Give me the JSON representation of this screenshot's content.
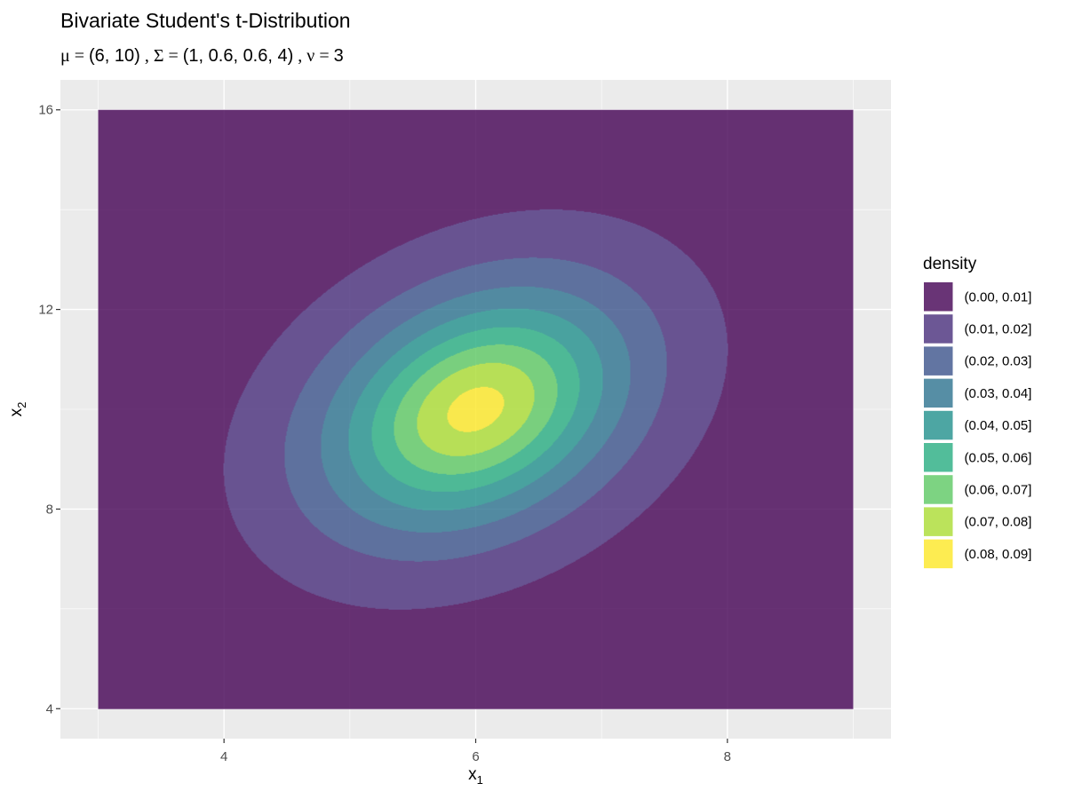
{
  "chart_data": {
    "type": "heatmap",
    "subtype": "filled-contour",
    "title": "Bivariate Student's t-Distribution",
    "subtitle": {
      "mu_symbol": "μ",
      "mu_value": "(6, 10)",
      "sigma_symbol": "Σ",
      "sigma_value": "(1, 0.6, 0.6, 4)",
      "nu_symbol": "ν",
      "nu_value": "3"
    },
    "xlabel": {
      "base": "x",
      "sub": "1"
    },
    "ylabel": {
      "base": "x",
      "sub": "2"
    },
    "xlim": [
      2.7,
      9.3
    ],
    "ylim": [
      3.4,
      16.6
    ],
    "x_grid_range": [
      3,
      9
    ],
    "y_grid_range": [
      4,
      16
    ],
    "x_ticks": [
      4,
      6,
      8
    ],
    "y_ticks": [
      4,
      8,
      12,
      16
    ],
    "x_tick_labels": [
      "4",
      "6",
      "8"
    ],
    "y_tick_labels": [
      "4",
      "8",
      "12",
      "16"
    ],
    "grid": true,
    "distribution": {
      "mu": [
        6,
        10
      ],
      "sigma": [
        1,
        0.6,
        0.6,
        4
      ],
      "df": 3
    },
    "legend": {
      "title": "density",
      "position": "right",
      "bins": [
        {
          "label": "(0.00, 0.01]",
          "lower": 0.0,
          "upper": 0.01,
          "color": "#440154"
        },
        {
          "label": "(0.01, 0.02]",
          "lower": 0.01,
          "upper": 0.02,
          "color": "#472D7B"
        },
        {
          "label": "(0.02, 0.03]",
          "lower": 0.02,
          "upper": 0.03,
          "color": "#3B528B"
        },
        {
          "label": "(0.03, 0.04]",
          "lower": 0.03,
          "upper": 0.04,
          "color": "#2C728E"
        },
        {
          "label": "(0.04, 0.05]",
          "lower": 0.04,
          "upper": 0.05,
          "color": "#21908C"
        },
        {
          "label": "(0.05, 0.06]",
          "lower": 0.05,
          "upper": 0.06,
          "color": "#27AD81"
        },
        {
          "label": "(0.06, 0.07]",
          "lower": 0.06,
          "upper": 0.07,
          "color": "#5DC863"
        },
        {
          "label": "(0.07, 0.08]",
          "lower": 0.07,
          "upper": 0.08,
          "color": "#AADC32"
        },
        {
          "label": "(0.08, 0.09]",
          "lower": 0.08,
          "upper": 0.09,
          "color": "#FDE725"
        }
      ]
    },
    "fill_alpha": 0.8,
    "panel_background": "#EBEBEB",
    "grid_color": "#FFFFFF"
  }
}
